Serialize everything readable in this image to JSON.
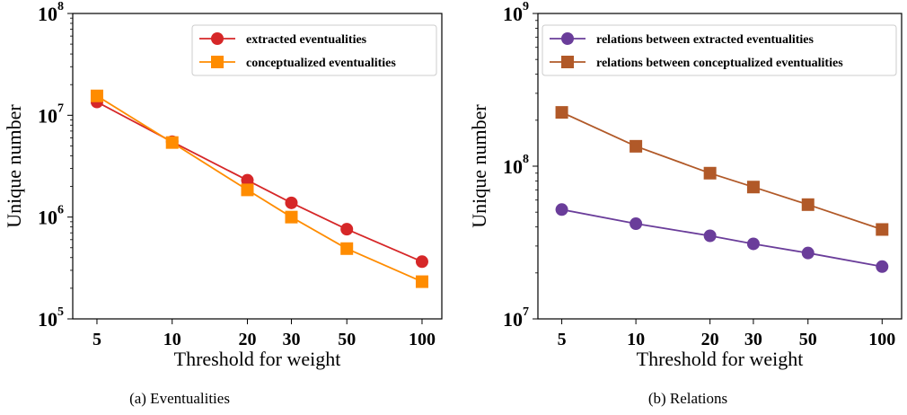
{
  "chart_data": [
    {
      "type": "line",
      "caption": "(a)  Eventualities",
      "xlabel": "Threshold for weight",
      "ylabel": "Unique number",
      "x": [
        5,
        10,
        20,
        30,
        50,
        100
      ],
      "x_ticks": [
        5,
        10,
        20,
        30,
        50,
        100
      ],
      "x_scale": "log",
      "y_scale": "log",
      "ylim": [
        100000,
        100000000
      ],
      "y_tick_exponents": [
        5,
        6,
        7,
        8
      ],
      "legend_position": "top-right",
      "grid": false,
      "series": [
        {
          "name": "extracted eventualities",
          "color": "#d62728",
          "marker": "circle",
          "values": [
            13500000,
            5500000,
            2300000,
            1380000,
            760000,
            365000
          ]
        },
        {
          "name": "conceptualized eventualities",
          "color": "#ff8c00",
          "marker": "square",
          "values": [
            15500000,
            5400000,
            1850000,
            1000000,
            490000,
            232000
          ]
        }
      ]
    },
    {
      "type": "line",
      "caption": "(b)  Relations",
      "xlabel": "Threshold for weight",
      "ylabel": "Unique number",
      "x": [
        5,
        10,
        20,
        30,
        50,
        100
      ],
      "x_ticks": [
        5,
        10,
        20,
        30,
        50,
        100
      ],
      "x_scale": "log",
      "y_scale": "log",
      "ylim": [
        10000000,
        1000000000
      ],
      "y_tick_exponents": [
        7,
        8,
        9
      ],
      "legend_position": "top-left",
      "grid": false,
      "series": [
        {
          "name": "relations between extracted eventualities",
          "color": "#6a3d9a",
          "marker": "circle",
          "values": [
            52000000,
            42000000,
            35000000,
            31000000,
            27000000,
            22000000
          ]
        },
        {
          "name": "relations between conceptualized eventualities",
          "color": "#b15928",
          "marker": "square",
          "values": [
            225000000,
            135000000,
            90000000,
            73000000,
            56000000,
            38500000
          ]
        }
      ]
    }
  ]
}
